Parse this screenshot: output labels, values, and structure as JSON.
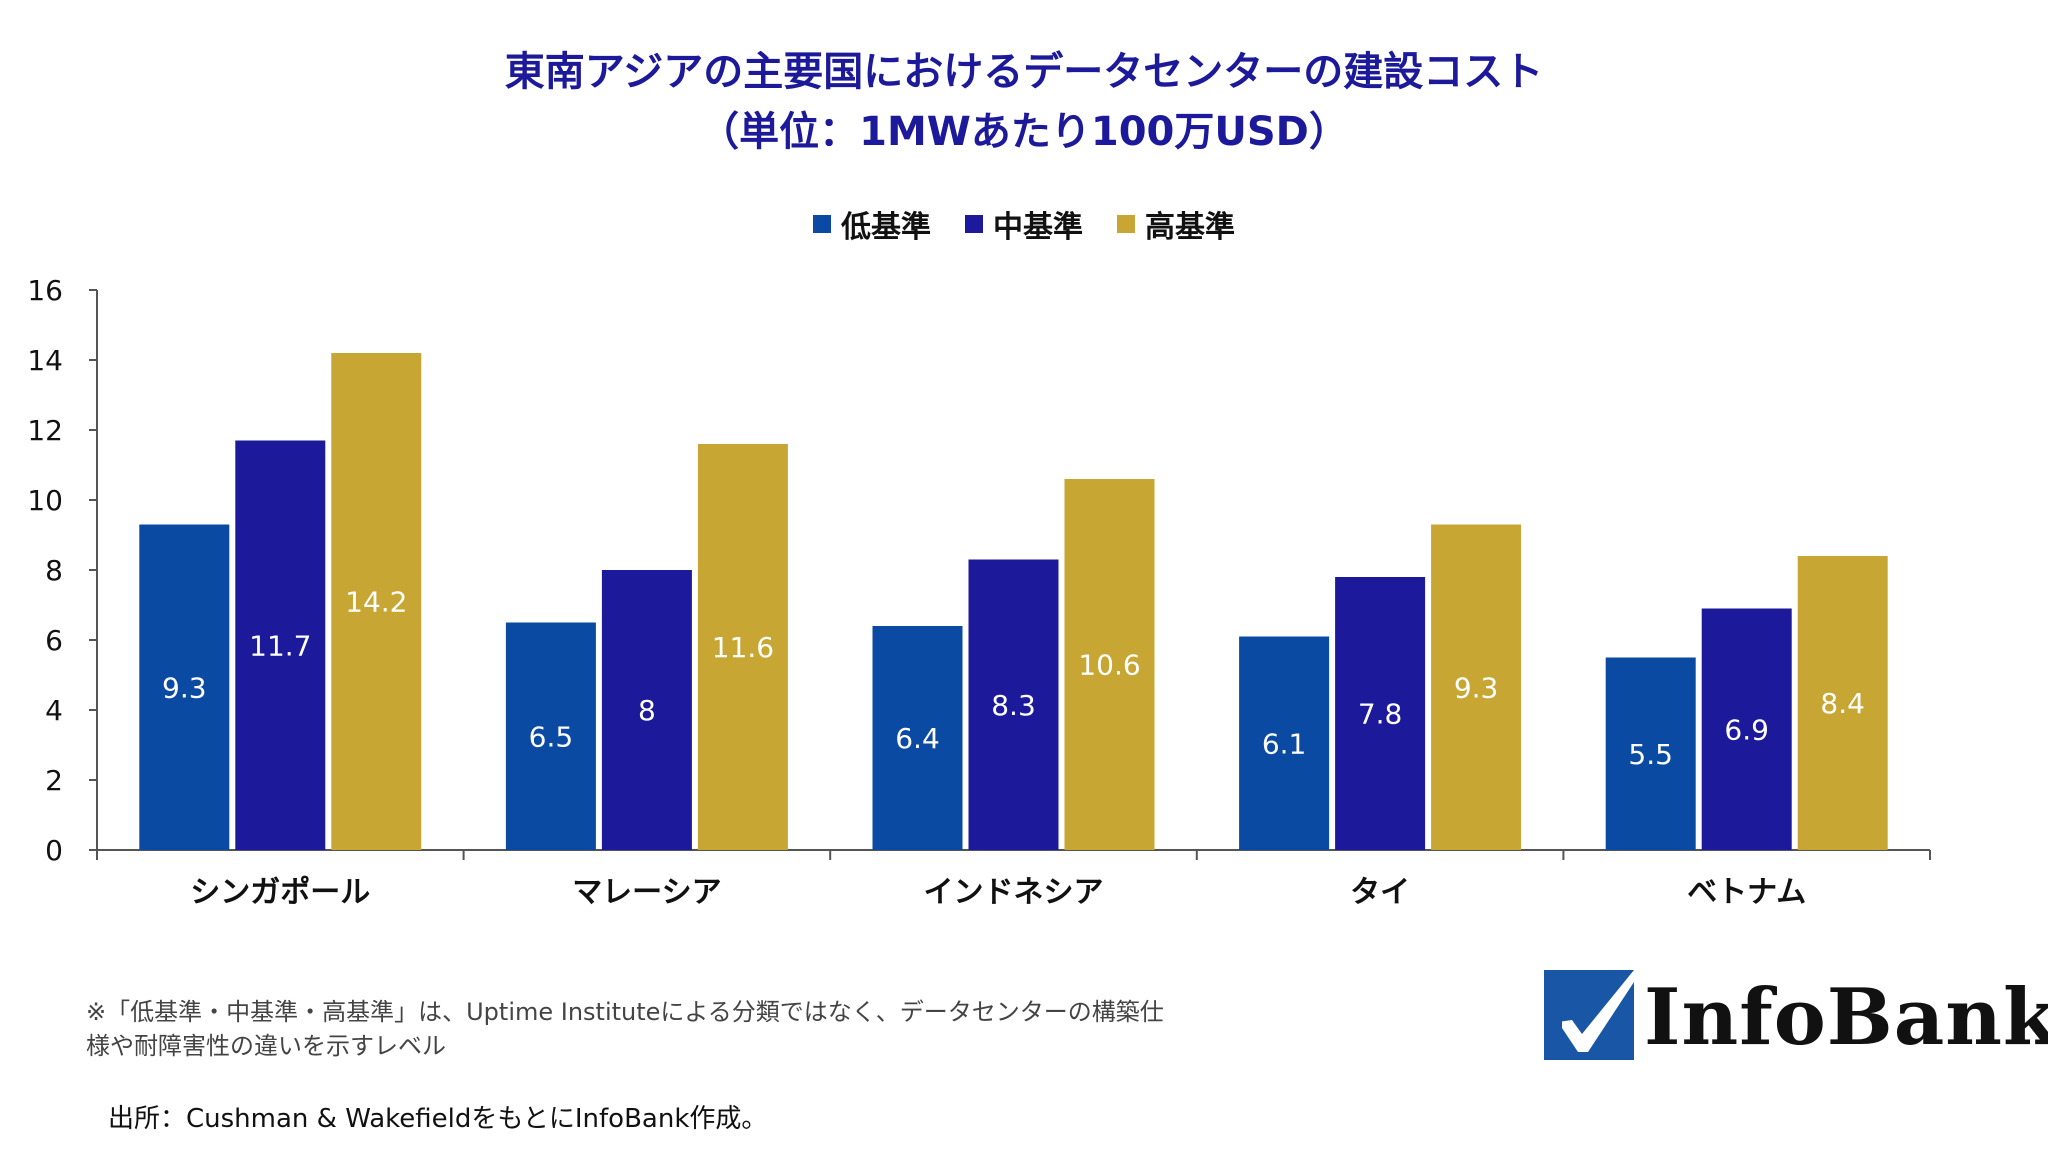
{
  "chart_data": {
    "type": "bar",
    "title": "東南アジアの主要国におけるデータセンターの建設コスト",
    "subtitle": "（単位：1MWあたり100万USD）",
    "categories": [
      "シンガポール",
      "マレーシア",
      "インドネシア",
      "タイ",
      "ベトナム"
    ],
    "series": [
      {
        "name": "低基準",
        "color": "#0b4aa2",
        "values": [
          9.3,
          6.5,
          6.4,
          6.1,
          5.5
        ],
        "labels": [
          "9.3",
          "6.5",
          "6.4",
          "6.1",
          "5.5"
        ]
      },
      {
        "name": "中基準",
        "color": "#1c1a9a",
        "values": [
          11.7,
          8,
          8.3,
          7.8,
          6.9
        ],
        "labels": [
          "11.7",
          "8",
          "8.3",
          "7.8",
          "6.9"
        ]
      },
      {
        "name": "高基準",
        "color": "#c8a633",
        "values": [
          14.2,
          11.6,
          10.6,
          9.3,
          8.4
        ],
        "labels": [
          "14.2",
          "11.6",
          "10.6",
          "9.3",
          "8.4"
        ]
      }
    ],
    "ylim": [
      0,
      16
    ],
    "yticks": [
      "0",
      "2",
      "4",
      "6",
      "8",
      "10",
      "12",
      "14",
      "16"
    ],
    "xlabel": "",
    "ylabel": "",
    "grid": false,
    "legend": "top-center"
  },
  "notes": {
    "note1": "※「低基準・中基準・高基準」は、Uptime Instituteによる分類ではなく、データセンターの構築仕様や耐障害性の違いを示すレベル",
    "source": "出所：Cushman & WakefieldをもとにInfoBank作成。"
  },
  "logo": {
    "text": "InfoBank",
    "icon": "checkmark-logo-icon"
  }
}
